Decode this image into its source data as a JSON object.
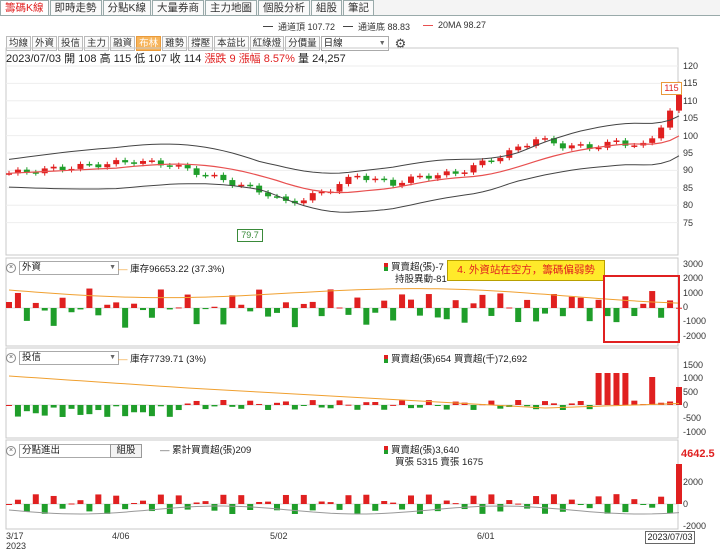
{
  "tabs": [
    "籌碼K線",
    "即時走勢",
    "分點K線",
    "大量券商",
    "主力地圖",
    "個股分析",
    "組股",
    "筆記"
  ],
  "legend": {
    "upper": "通道頂 107.72",
    "lower": "通道底 88.83",
    "ma": "20MA 98.27"
  },
  "toolbar": {
    "items": [
      "均線",
      "外資",
      "投信",
      "主力",
      "融資",
      "布林",
      "雞勢",
      "撐壓",
      "本益比",
      "紅綠燈",
      "分價量"
    ],
    "active": "布林",
    "period": "日線"
  },
  "stats": {
    "date": "2023/07/03",
    "open_label": "開",
    "open": "108",
    "high_label": "高",
    "high": "115",
    "low_label": "低",
    "low": "107",
    "close_label": "收",
    "close": "114",
    "chg_label": "漲跌",
    "chg": "9",
    "pct_label": "漲幅",
    "pct": "8.57%",
    "vol_label": "量",
    "vol": "24,257"
  },
  "main_axis": [
    "120",
    "115",
    "110",
    "105",
    "100",
    "95",
    "90",
    "85",
    "80",
    "75"
  ],
  "tags": {
    "high": "115",
    "low": "79.7",
    "final": "4642.5"
  },
  "panel1": {
    "select": "外資",
    "inv_label": "庫存96653.22 (37.3%)",
    "buysell": "買賣超(張)-7",
    "holding": "持股異動-81",
    "axis": [
      "3000",
      "2000",
      "1000",
      "0",
      "-1000",
      "-2000"
    ]
  },
  "annotation": "4. 外資站在空方，籌碼偏弱勢",
  "panel2": {
    "select": "投信",
    "inv_label": "庫存7739.71 (3%)",
    "buysell": "買賣超(張)654 買賣超(千)72,692",
    "axis": [
      "1500",
      "1000",
      "500",
      "0",
      "-500",
      "-1000"
    ]
  },
  "panel3": {
    "select": "分點進出",
    "button": "組股",
    "cum": "累計買賣超(張)209",
    "buysell": "買賣超(張)3,640",
    "detail": "買張 5315 賣張 1675",
    "axis": [
      "2000",
      "0",
      "-2000"
    ]
  },
  "xaxis": {
    "d1": "3/17",
    "year": "2023",
    "d2": "4/06",
    "d3": "5/02",
    "d4": "6/01",
    "end": "2023/07/03"
  },
  "colors": {
    "up": "#e02020",
    "down": "#1f9e2a",
    "ma": "#e85050",
    "band": "#444444",
    "inv": "#f0a030"
  }
}
